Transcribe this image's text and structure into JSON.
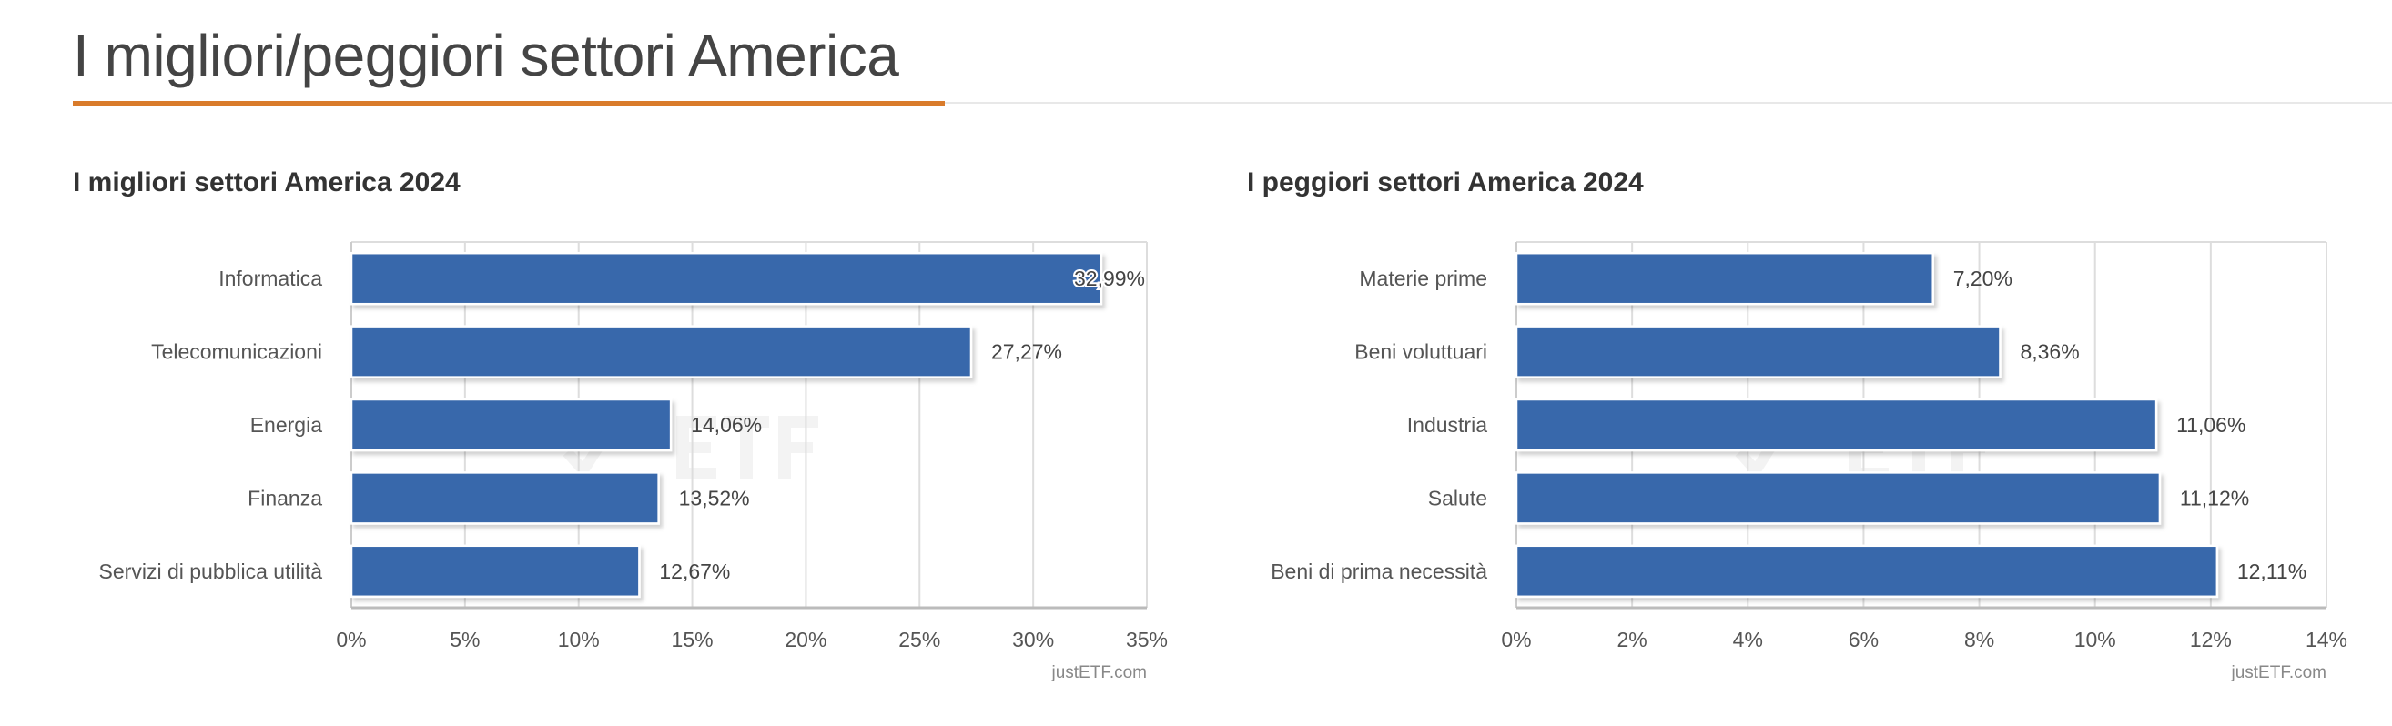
{
  "header": {
    "title": "I migliori/peggiori settori America"
  },
  "colors": {
    "bar": "#3768ab",
    "accent": "#d97b2b",
    "grid": "#dddddd",
    "text": "#555555"
  },
  "chart_data": [
    {
      "type": "bar",
      "orientation": "horizontal",
      "title": "I migliori settori America 2024",
      "categories": [
        "Informatica",
        "Telecomunicazioni",
        "Energia",
        "Finanza",
        "Servizi di pubblica utilità"
      ],
      "values": [
        32.99,
        27.27,
        14.06,
        13.52,
        12.67
      ],
      "data_labels": [
        "32,99%",
        "27,27%",
        "14,06%",
        "13,52%",
        "12,67%"
      ],
      "xlim": [
        0,
        35
      ],
      "ticks": [
        0,
        5,
        10,
        15,
        20,
        25,
        30,
        35
      ],
      "tick_labels": [
        "0%",
        "5%",
        "10%",
        "15%",
        "20%",
        "25%",
        "30%",
        "35%"
      ],
      "grid": true,
      "credit": "justETF.com",
      "watermark": "justETF"
    },
    {
      "type": "bar",
      "orientation": "horizontal",
      "title": "I peggiori settori America 2024",
      "categories": [
        "Materie prime",
        "Beni voluttuari",
        "Industria",
        "Salute",
        "Beni di prima necessità"
      ],
      "values": [
        7.2,
        8.36,
        11.06,
        11.12,
        12.11
      ],
      "data_labels": [
        "7,20%",
        "8,36%",
        "11,06%",
        "11,12%",
        "12,11%"
      ],
      "xlim": [
        0,
        14
      ],
      "ticks": [
        0,
        2,
        4,
        6,
        8,
        10,
        12,
        14
      ],
      "tick_labels": [
        "0%",
        "2%",
        "4%",
        "6%",
        "8%",
        "10%",
        "12%",
        "14%"
      ],
      "grid": true,
      "credit": "justETF.com",
      "watermark": "justETF"
    }
  ]
}
